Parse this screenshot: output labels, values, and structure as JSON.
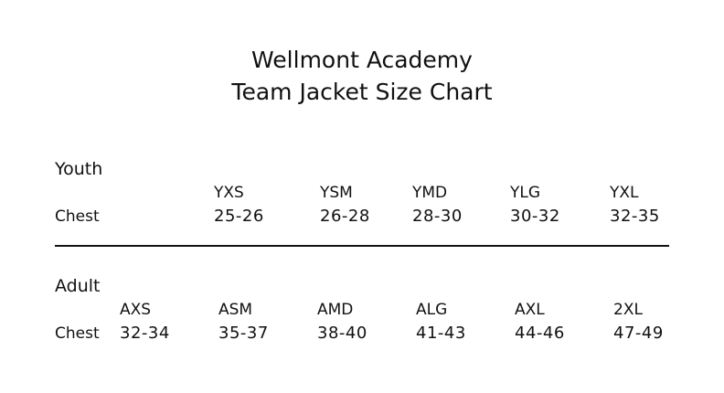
{
  "header": {
    "title": [
      "Wellmont Academy",
      "Team Jacket Size Chart"
    ]
  },
  "sections": [
    {
      "label": "Youth",
      "sizes": [
        "YXS",
        "YSM",
        "YMD",
        "YLG",
        "YXL"
      ],
      "row_label": "Chest",
      "values": [
        "25-26",
        "26-28",
        "28-30",
        "30-32",
        "32-35"
      ]
    },
    {
      "label": "Adult",
      "sizes": [
        "AXS",
        "ASM",
        "AMD",
        "ALG",
        "AXL",
        "2XL"
      ],
      "row_label": "Chest",
      "values": [
        "32-34",
        "35-37",
        "38-40",
        "41-43",
        "44-46",
        "47-49"
      ]
    }
  ]
}
